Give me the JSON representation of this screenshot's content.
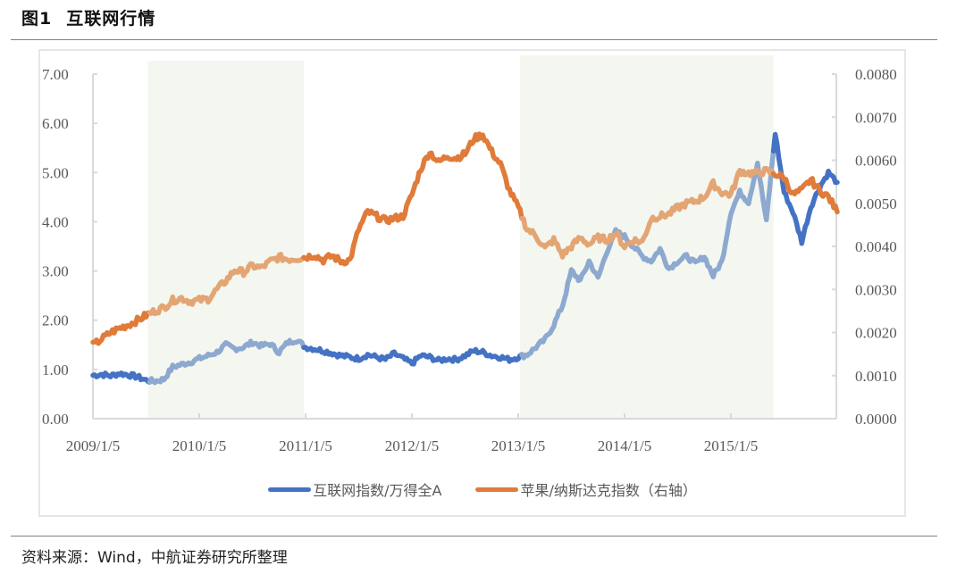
{
  "figure": {
    "number": "图1",
    "title": "互联网行情",
    "source": "资料来源：Wind，中航证券研究所整理"
  },
  "colors": {
    "blue": "#4472c4",
    "blue_light": "#8ea9d0",
    "orange": "#e07b39",
    "orange_light": "#e4a574",
    "shade": "#f4f7f0",
    "axis": "#d9d9d9",
    "tick_text": "#595959"
  },
  "chart_data": {
    "type": "line",
    "title": "互联网行情",
    "xlabel": "",
    "ylabel": "",
    "x_ticks": [
      "2009/1/5",
      "2010/1/5",
      "2011/1/5",
      "2012/1/5",
      "2013/1/5",
      "2014/1/5",
      "2015/1/5"
    ],
    "y_left": {
      "ticks": [
        "0.00",
        "1.00",
        "2.00",
        "3.00",
        "4.00",
        "5.00",
        "6.00",
        "7.00"
      ],
      "ylim": [
        0,
        7
      ]
    },
    "y_right": {
      "ticks": [
        "0.0000",
        "0.0010",
        "0.0020",
        "0.0030",
        "0.0040",
        "0.0050",
        "0.0060",
        "0.0070",
        "0.0080"
      ],
      "ylim": [
        0,
        0.008
      ]
    },
    "grid": false,
    "legend_position": "bottom",
    "shaded_periods": [
      {
        "start": "2009-07",
        "end": "2011-01"
      },
      {
        "start": "2013-01",
        "end": "2015-06"
      }
    ],
    "series": [
      {
        "name": "互联网指数/万得全A",
        "axis": "left",
        "color": "#4472c4",
        "points": [
          [
            "2009-01",
            0.88
          ],
          [
            "2009-02",
            0.9
          ],
          [
            "2009-03",
            0.87
          ],
          [
            "2009-04",
            0.92
          ],
          [
            "2009-05",
            0.89
          ],
          [
            "2009-06",
            0.85
          ],
          [
            "2009-07",
            0.78
          ],
          [
            "2009-08",
            0.76
          ],
          [
            "2009-09",
            0.8
          ],
          [
            "2009-10",
            1.05
          ],
          [
            "2009-11",
            1.1
          ],
          [
            "2009-12",
            1.15
          ],
          [
            "2010-01",
            1.22
          ],
          [
            "2010-02",
            1.28
          ],
          [
            "2010-03",
            1.35
          ],
          [
            "2010-04",
            1.5
          ],
          [
            "2010-05",
            1.42
          ],
          [
            "2010-06",
            1.45
          ],
          [
            "2010-07",
            1.55
          ],
          [
            "2010-08",
            1.48
          ],
          [
            "2010-09",
            1.52
          ],
          [
            "2010-10",
            1.35
          ],
          [
            "2010-11",
            1.55
          ],
          [
            "2010-12",
            1.6
          ],
          [
            "2011-01",
            1.45
          ],
          [
            "2011-02",
            1.42
          ],
          [
            "2011-03",
            1.38
          ],
          [
            "2011-04",
            1.33
          ],
          [
            "2011-05",
            1.28
          ],
          [
            "2011-06",
            1.25
          ],
          [
            "2011-07",
            1.22
          ],
          [
            "2011-08",
            1.3
          ],
          [
            "2011-09",
            1.25
          ],
          [
            "2011-10",
            1.2
          ],
          [
            "2011-11",
            1.32
          ],
          [
            "2011-12",
            1.22
          ],
          [
            "2012-01",
            1.12
          ],
          [
            "2012-02",
            1.28
          ],
          [
            "2012-03",
            1.25
          ],
          [
            "2012-04",
            1.18
          ],
          [
            "2012-05",
            1.22
          ],
          [
            "2012-06",
            1.2
          ],
          [
            "2012-07",
            1.28
          ],
          [
            "2012-08",
            1.38
          ],
          [
            "2012-09",
            1.35
          ],
          [
            "2012-10",
            1.28
          ],
          [
            "2012-11",
            1.25
          ],
          [
            "2012-12",
            1.2
          ],
          [
            "2013-01",
            1.25
          ],
          [
            "2013-02",
            1.3
          ],
          [
            "2013-03",
            1.45
          ],
          [
            "2013-04",
            1.6
          ],
          [
            "2013-05",
            1.9
          ],
          [
            "2013-06",
            2.3
          ],
          [
            "2013-07",
            3.0
          ],
          [
            "2013-08",
            2.8
          ],
          [
            "2013-09",
            3.2
          ],
          [
            "2013-10",
            2.85
          ],
          [
            "2013-11",
            3.4
          ],
          [
            "2013-12",
            3.8
          ],
          [
            "2014-01",
            3.7
          ],
          [
            "2014-02",
            3.5
          ],
          [
            "2014-03",
            3.3
          ],
          [
            "2014-04",
            3.2
          ],
          [
            "2014-05",
            3.45
          ],
          [
            "2014-06",
            3.05
          ],
          [
            "2014-07",
            3.2
          ],
          [
            "2014-08",
            3.3
          ],
          [
            "2014-09",
            3.15
          ],
          [
            "2014-10",
            3.3
          ],
          [
            "2014-11",
            2.9
          ],
          [
            "2014-12",
            3.2
          ],
          [
            "2015-01",
            4.2
          ],
          [
            "2015-02",
            4.6
          ],
          [
            "2015-03",
            4.4
          ],
          [
            "2015-04",
            5.2
          ],
          [
            "2015-05",
            4.0
          ],
          [
            "2015-06",
            5.8
          ],
          [
            "2015-07",
            4.6
          ],
          [
            "2015-08",
            4.2
          ],
          [
            "2015-09",
            3.6
          ],
          [
            "2015-10",
            4.3
          ],
          [
            "2015-11",
            4.7
          ],
          [
            "2015-12",
            5.0
          ],
          [
            "2016-01",
            4.8
          ]
        ]
      },
      {
        "name": "苹果/纳斯达克指数（右轴）",
        "axis": "right",
        "color": "#e07b39",
        "points": [
          [
            "2009-01",
            0.0017
          ],
          [
            "2009-02",
            0.00185
          ],
          [
            "2009-03",
            0.002
          ],
          [
            "2009-04",
            0.0021
          ],
          [
            "2009-05",
            0.00218
          ],
          [
            "2009-06",
            0.00228
          ],
          [
            "2009-07",
            0.0024
          ],
          [
            "2009-08",
            0.0025
          ],
          [
            "2009-09",
            0.00258
          ],
          [
            "2009-10",
            0.00275
          ],
          [
            "2009-11",
            0.0028
          ],
          [
            "2009-12",
            0.00272
          ],
          [
            "2010-01",
            0.00275
          ],
          [
            "2010-02",
            0.00278
          ],
          [
            "2010-03",
            0.003
          ],
          [
            "2010-04",
            0.0032
          ],
          [
            "2010-05",
            0.00345
          ],
          [
            "2010-06",
            0.0034
          ],
          [
            "2010-07",
            0.00355
          ],
          [
            "2010-08",
            0.0035
          ],
          [
            "2010-09",
            0.00365
          ],
          [
            "2010-10",
            0.00375
          ],
          [
            "2010-11",
            0.0037
          ],
          [
            "2010-12",
            0.00372
          ],
          [
            "2011-01",
            0.00375
          ],
          [
            "2011-02",
            0.0038
          ],
          [
            "2011-03",
            0.00368
          ],
          [
            "2011-04",
            0.00378
          ],
          [
            "2011-05",
            0.00365
          ],
          [
            "2011-06",
            0.00368
          ],
          [
            "2011-07",
            0.0044
          ],
          [
            "2011-08",
            0.0048
          ],
          [
            "2011-09",
            0.0047
          ],
          [
            "2011-10",
            0.0046
          ],
          [
            "2011-11",
            0.00465
          ],
          [
            "2011-12",
            0.0047
          ],
          [
            "2012-01",
            0.0052
          ],
          [
            "2012-02",
            0.0058
          ],
          [
            "2012-03",
            0.0062
          ],
          [
            "2012-04",
            0.00595
          ],
          [
            "2012-05",
            0.0061
          ],
          [
            "2012-06",
            0.00605
          ],
          [
            "2012-07",
            0.00615
          ],
          [
            "2012-08",
            0.0065
          ],
          [
            "2012-09",
            0.0066
          ],
          [
            "2012-10",
            0.0062
          ],
          [
            "2012-11",
            0.0059
          ],
          [
            "2012-12",
            0.0053
          ],
          [
            "2013-01",
            0.0049
          ],
          [
            "2013-02",
            0.0044
          ],
          [
            "2013-03",
            0.00425
          ],
          [
            "2013-04",
            0.00395
          ],
          [
            "2013-05",
            0.00415
          ],
          [
            "2013-06",
            0.0038
          ],
          [
            "2013-07",
            0.004
          ],
          [
            "2013-08",
            0.0042
          ],
          [
            "2013-09",
            0.00405
          ],
          [
            "2013-10",
            0.0042
          ],
          [
            "2013-11",
            0.00415
          ],
          [
            "2013-12",
            0.0043
          ],
          [
            "2014-01",
            0.004
          ],
          [
            "2014-02",
            0.00415
          ],
          [
            "2014-03",
            0.0041
          ],
          [
            "2014-04",
            0.00465
          ],
          [
            "2014-05",
            0.0047
          ],
          [
            "2014-06",
            0.00475
          ],
          [
            "2014-07",
            0.0049
          ],
          [
            "2014-08",
            0.005
          ],
          [
            "2014-09",
            0.00505
          ],
          [
            "2014-10",
            0.00515
          ],
          [
            "2014-11",
            0.00545
          ],
          [
            "2014-12",
            0.00525
          ],
          [
            "2015-01",
            0.0052
          ],
          [
            "2015-02",
            0.00575
          ],
          [
            "2015-03",
            0.0057
          ],
          [
            "2015-04",
            0.0057
          ],
          [
            "2015-05",
            0.00575
          ],
          [
            "2015-06",
            0.00568
          ],
          [
            "2015-07",
            0.0056
          ],
          [
            "2015-08",
            0.0052
          ],
          [
            "2015-09",
            0.0053
          ],
          [
            "2015-10",
            0.00555
          ],
          [
            "2015-11",
            0.0053
          ],
          [
            "2015-12",
            0.00515
          ],
          [
            "2016-01",
            0.0048
          ]
        ]
      }
    ]
  },
  "legend": {
    "items": [
      {
        "label": "互联网指数/万得全A",
        "color": "#4472c4"
      },
      {
        "label": "苹果/纳斯达克指数（右轴）",
        "color": "#e07b39"
      }
    ]
  }
}
